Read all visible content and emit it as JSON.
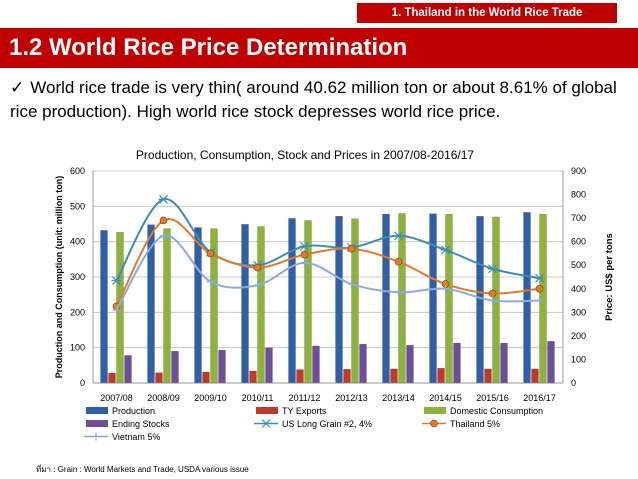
{
  "header": {
    "section_tag": "1. Thailand in the World Rice Trade",
    "title": "1.2  World Rice Price Determination"
  },
  "bullet": {
    "icon": "checkmark-icon",
    "check_glyph": "✓",
    "text": "World rice trade is very thin( around 40.62 million ton or about 8.61% of global rice production). High world rice stock depresses world rice price."
  },
  "footer": {
    "source": "ที่มา : Grain : World Markets and Trade, USDA  various issue"
  },
  "chart_data": {
    "type": "bar",
    "title": "Production, Consumption, Stock and Prices in 2007/08-2016/17",
    "xlabel": "",
    "ylabel": "Production and Consumption (unit: million ton)",
    "y2label": "Price: US$ per tons",
    "ylim": [
      0,
      600
    ],
    "y2lim": [
      0,
      900
    ],
    "yticks": [
      "0",
      "100",
      "200",
      "300",
      "400",
      "500",
      "600"
    ],
    "y2ticks": [
      "0",
      "100",
      "200",
      "300",
      "400",
      "500",
      "600",
      "700",
      "800",
      "900"
    ],
    "grid": true,
    "legend_position": "bottom",
    "categories": [
      "2007/08",
      "2008/09",
      "2009/10",
      "2010/11",
      "2011/12",
      "2012/13",
      "2013/14",
      "2014/15",
      "2015/16",
      "2016/17"
    ],
    "series": [
      {
        "name": "Production",
        "kind": "bar",
        "axis": "left",
        "color": "#2e5fa8",
        "values": [
          432,
          448,
          440,
          449,
          466,
          472,
          478,
          479,
          472,
          483
        ]
      },
      {
        "name": "TY Exports",
        "kind": "bar",
        "axis": "left",
        "color": "#c0392b",
        "values": [
          28,
          29,
          31,
          34,
          38,
          39,
          40,
          42,
          40,
          40
        ]
      },
      {
        "name": "Domestic Consumption",
        "kind": "bar",
        "axis": "left",
        "color": "#8db33a",
        "values": [
          427,
          437,
          437,
          443,
          460,
          465,
          480,
          478,
          470,
          478
        ]
      },
      {
        "name": "Ending Stocks",
        "kind": "bar",
        "axis": "left",
        "color": "#6c4f96",
        "values": [
          78,
          90,
          93,
          100,
          105,
          110,
          107,
          113,
          113,
          118
        ]
      },
      {
        "name": "US Long Grain #2, 4%",
        "kind": "line",
        "axis": "right",
        "color": "#3a8fb7",
        "marker": "star",
        "values": [
          435,
          780,
          555,
          500,
          580,
          575,
          625,
          565,
          485,
          445
        ]
      },
      {
        "name": "Thailand 5%",
        "kind": "line",
        "axis": "right",
        "color": "#e07b2a",
        "marker": "circle",
        "values": [
          325,
          690,
          550,
          490,
          545,
          570,
          515,
          420,
          380,
          400
        ]
      },
      {
        "name": "Vietnam 5%",
        "kind": "line",
        "axis": "right",
        "color": "#8faadc",
        "marker": "plus",
        "values": [
          310,
          625,
          430,
          415,
          510,
          420,
          385,
          400,
          350,
          350
        ]
      }
    ]
  }
}
